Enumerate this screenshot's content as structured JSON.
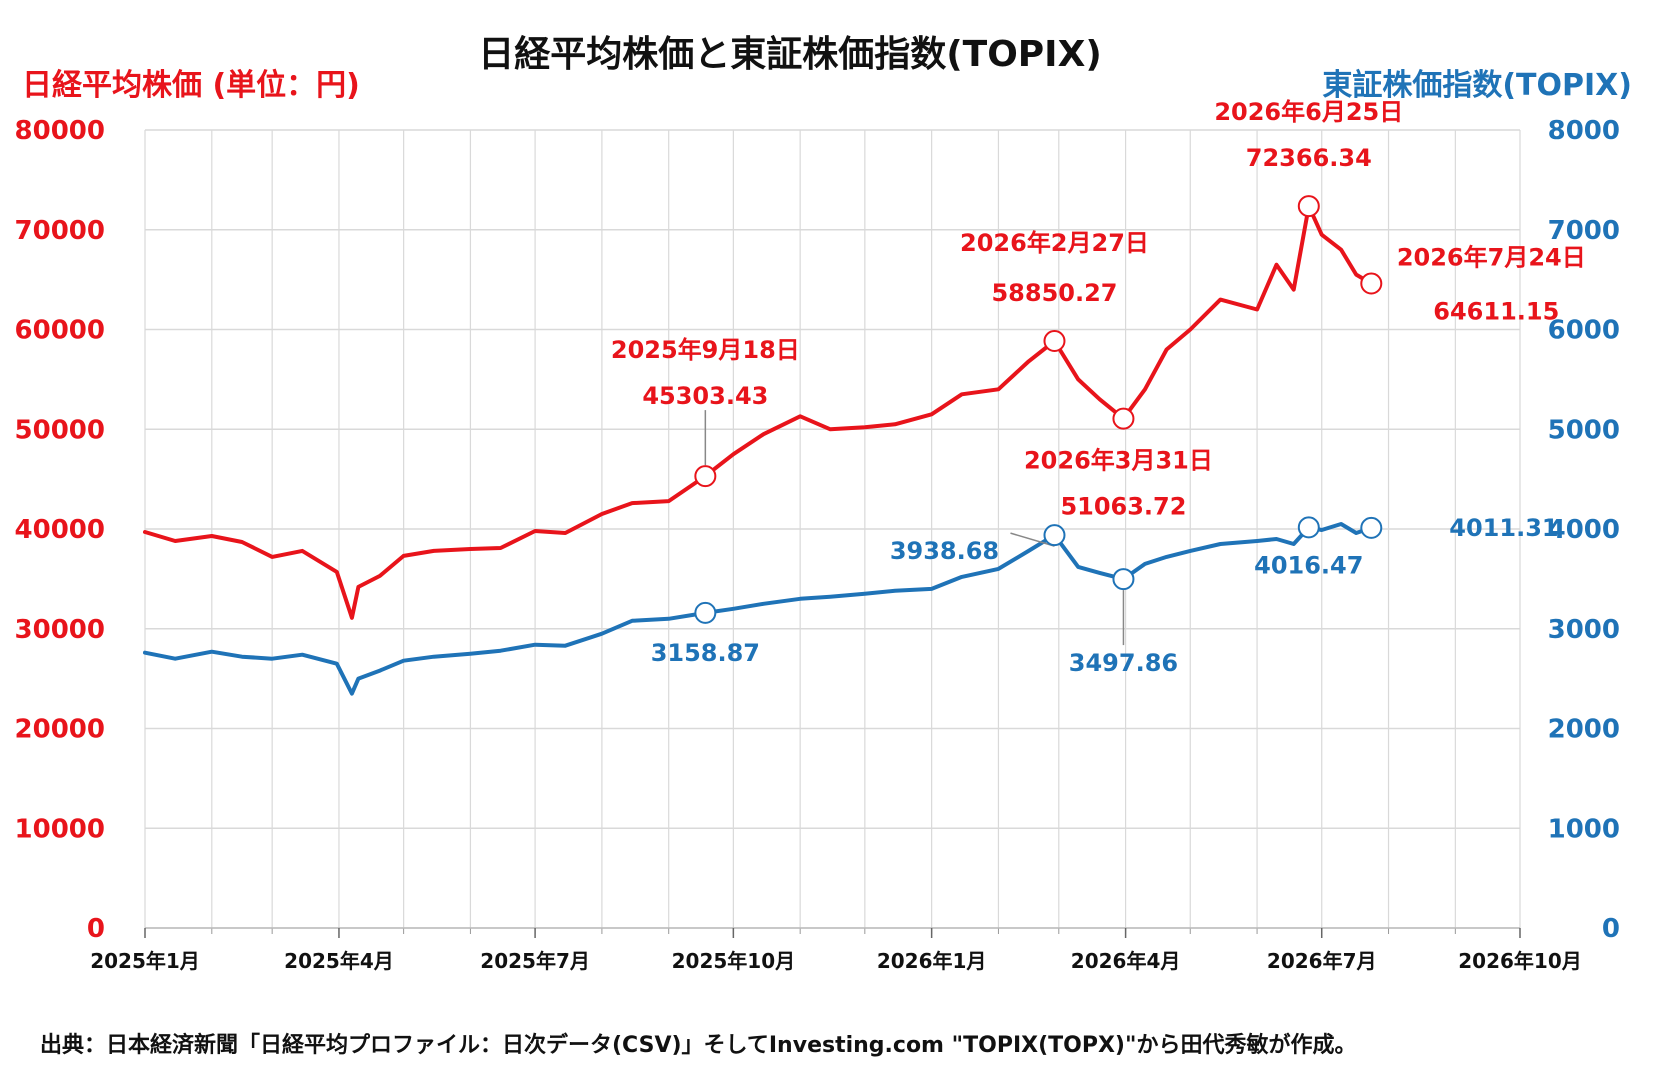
{
  "chart_data": {
    "type": "line",
    "title": "日経平均株価と東証株価指数(TOPIX)",
    "ylabel_left": "日経平均株価 (単位：円)",
    "ylabel_right": "東証株価指数(TOPIX)",
    "ylim_left": [
      0,
      80000
    ],
    "ylim_right": [
      0,
      8000
    ],
    "yticks_left": [
      "0",
      "10000",
      "20000",
      "30000",
      "40000",
      "50000",
      "60000",
      "70000",
      "80000"
    ],
    "yticks_right": [
      "0",
      "1000",
      "2000",
      "3000",
      "4000",
      "5000",
      "6000",
      "7000",
      "8000"
    ],
    "xlim": [
      "2025-01-01",
      "2026-10-01"
    ],
    "xticks": [
      {
        "date": "2025-01-01",
        "label": "2025年1月"
      },
      {
        "date": "2025-04-01",
        "label": "2025年4月"
      },
      {
        "date": "2025-07-01",
        "label": "2025年7月"
      },
      {
        "date": "2025-10-01",
        "label": "2025年10月"
      },
      {
        "date": "2026-01-01",
        "label": "2026年1月"
      },
      {
        "date": "2026-04-01",
        "label": "2026年4月"
      },
      {
        "date": "2026-07-01",
        "label": "2026年7月"
      },
      {
        "date": "2026-10-01",
        "label": "2026年10月"
      }
    ],
    "grid": true,
    "colors": {
      "nikkei": "#e8141b",
      "topix": "#1f73b7",
      "grid": "#d9d9d9"
    },
    "series": [
      {
        "axis": "left",
        "x": [
          "2025-01-01",
          "2025-01-15",
          "2025-02-01",
          "2025-02-15",
          "2025-03-01",
          "2025-03-15",
          "2025-03-31",
          "2025-04-07",
          "2025-04-10",
          "2025-04-20",
          "2025-05-01",
          "2025-05-15",
          "2025-06-01",
          "2025-06-15",
          "2025-07-01",
          "2025-07-15",
          "2025-08-01",
          "2025-08-15",
          "2025-09-01",
          "2025-09-18",
          "2025-10-01",
          "2025-10-15",
          "2025-11-01",
          "2025-11-15",
          "2025-12-01",
          "2025-12-15",
          "2026-01-01",
          "2026-01-15",
          "2026-02-01",
          "2026-02-15",
          "2026-02-27",
          "2026-03-10",
          "2026-03-20",
          "2026-03-31",
          "2026-04-10",
          "2026-04-20",
          "2026-05-01",
          "2026-05-15",
          "2026-06-01",
          "2026-06-10",
          "2026-06-18",
          "2026-06-25",
          "2026-07-01",
          "2026-07-10",
          "2026-07-17",
          "2026-07-24"
        ],
        "values": [
          39700,
          38800,
          39300,
          38700,
          37200,
          37800,
          35700,
          31100,
          34200,
          35300,
          37300,
          37800,
          38000,
          38100,
          39800,
          39600,
          41500,
          42600,
          42800,
          45303,
          47500,
          49500,
          51300,
          50000,
          50200,
          50500,
          51500,
          53500,
          54000,
          56800,
          58850,
          55000,
          53000,
          51064,
          54000,
          58000,
          60000,
          63000,
          62000,
          66500,
          64000,
          72366,
          69500,
          68000,
          65500,
          64611
        ]
      },
      {
        "axis": "right",
        "x": [
          "2025-01-01",
          "2025-01-15",
          "2025-02-01",
          "2025-02-15",
          "2025-03-01",
          "2025-03-15",
          "2025-03-31",
          "2025-04-07",
          "2025-04-10",
          "2025-04-20",
          "2025-05-01",
          "2025-05-15",
          "2025-06-01",
          "2025-06-15",
          "2025-07-01",
          "2025-07-15",
          "2025-08-01",
          "2025-08-15",
          "2025-09-01",
          "2025-09-18",
          "2025-10-01",
          "2025-10-15",
          "2025-11-01",
          "2025-11-15",
          "2025-12-01",
          "2025-12-15",
          "2026-01-01",
          "2026-01-15",
          "2026-02-01",
          "2026-02-15",
          "2026-02-27",
          "2026-03-10",
          "2026-03-20",
          "2026-03-31",
          "2026-04-10",
          "2026-04-20",
          "2026-05-01",
          "2026-05-15",
          "2026-06-01",
          "2026-06-10",
          "2026-06-18",
          "2026-06-25",
          "2026-07-01",
          "2026-07-10",
          "2026-07-17",
          "2026-07-24"
        ],
        "values": [
          2760,
          2700,
          2770,
          2720,
          2700,
          2740,
          2650,
          2350,
          2500,
          2580,
          2680,
          2720,
          2750,
          2780,
          2840,
          2830,
          2950,
          3080,
          3100,
          3159,
          3200,
          3250,
          3300,
          3320,
          3350,
          3380,
          3400,
          3520,
          3600,
          3780,
          3939,
          3620,
          3560,
          3498,
          3650,
          3720,
          3780,
          3850,
          3880,
          3900,
          3850,
          4016,
          3990,
          4050,
          3960,
          4011
        ]
      }
    ],
    "annotations": [
      {
        "series": 0,
        "date": "2025-09-18",
        "value": 45303.43,
        "date_label": "2025年9月18日",
        "value_label": "45303.43"
      },
      {
        "series": 0,
        "date": "2026-02-27",
        "value": 58850.27,
        "date_label": "2026年2月27日",
        "value_label": "58850.27"
      },
      {
        "series": 0,
        "date": "2026-03-31",
        "value": 51063.72,
        "date_label": "2026年3月31日",
        "value_label": "51063.72"
      },
      {
        "series": 0,
        "date": "2026-06-25",
        "value": 72366.34,
        "date_label": "2026年6月25日",
        "value_label": "72366.34"
      },
      {
        "series": 0,
        "date": "2026-07-24",
        "value": 64611.15,
        "date_label": "2026年7月24日",
        "value_label": "64611.15"
      },
      {
        "series": 1,
        "date": "2025-09-18",
        "value": 3158.87,
        "value_label": "3158.87"
      },
      {
        "series": 1,
        "date": "2026-02-27",
        "value": 3938.68,
        "value_label": "3938.68"
      },
      {
        "series": 1,
        "date": "2026-03-31",
        "value": 3497.86,
        "value_label": "3497.86"
      },
      {
        "series": 1,
        "date": "2026-06-25",
        "value": 4016.47,
        "value_label": "4016.47"
      },
      {
        "series": 1,
        "date": "2026-07-24",
        "value": 4011.31,
        "value_label": "4011.31"
      }
    ]
  },
  "source": "出典：日本経済新聞「日経平均プロファイル：日次データ(CSV)」そしてInvesting.com \"TOPIX(TOPX)\"から田代秀敏が作成。"
}
